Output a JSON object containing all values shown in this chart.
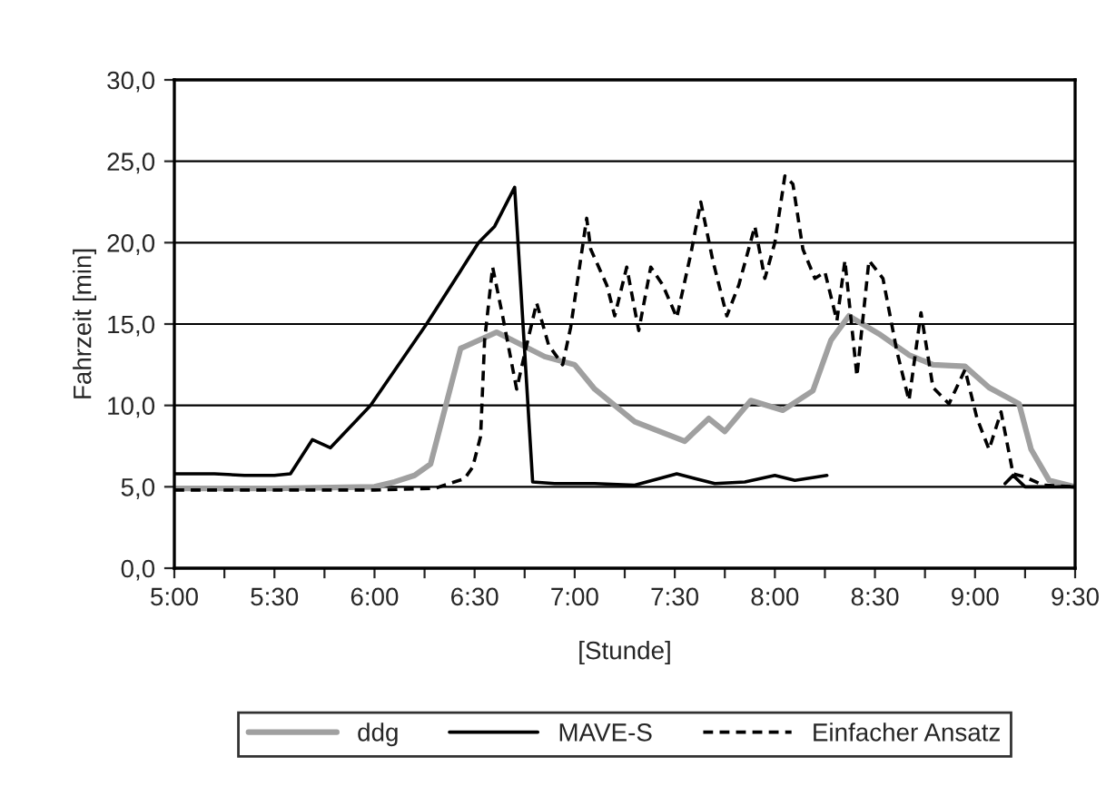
{
  "chart_data": {
    "type": "line",
    "xlabel": "[Stunde]",
    "ylabel": "Fahrzeit [min]",
    "xlim": [
      5,
      9.5
    ],
    "xticks": [
      {
        "value": 5,
        "label": "5:00"
      },
      {
        "value": 5.25,
        "label": null
      },
      {
        "value": 5.5,
        "label": "5:30"
      },
      {
        "value": 5.75,
        "label": null
      },
      {
        "value": 6,
        "label": "6:00"
      },
      {
        "value": 6.25,
        "label": null
      },
      {
        "value": 6.5,
        "label": "6:30"
      },
      {
        "value": 6.75,
        "label": null
      },
      {
        "value": 7,
        "label": "7:00"
      },
      {
        "value": 7.25,
        "label": null
      },
      {
        "value": 7.5,
        "label": "7:30"
      },
      {
        "value": 7.75,
        "label": null
      },
      {
        "value": 8,
        "label": "8:00"
      },
      {
        "value": 8.25,
        "label": null
      },
      {
        "value": 8.5,
        "label": "8:30"
      },
      {
        "value": 8.75,
        "label": null
      },
      {
        "value": 9,
        "label": "9:00"
      },
      {
        "value": 9.25,
        "label": null
      },
      {
        "value": 9.5,
        "label": "9:30"
      }
    ],
    "ylim": [
      0,
      30
    ],
    "yticks": [
      {
        "value": 0,
        "label": "0,0"
      },
      {
        "value": 5,
        "label": "5,0"
      },
      {
        "value": 10,
        "label": "10,0"
      },
      {
        "value": 15,
        "label": "15,0"
      },
      {
        "value": 20,
        "label": "20,0"
      },
      {
        "value": 25,
        "label": "25,0"
      },
      {
        "value": 30,
        "label": "30,0"
      }
    ],
    "grid": "y",
    "legend": "bottom",
    "series": [
      {
        "name": "ddg",
        "color": "#a0a0a0",
        "line_style": "solid",
        "x": [
          5.0,
          5.5,
          6.0,
          6.1,
          6.2,
          6.28,
          6.43,
          6.61,
          6.85,
          7.0,
          7.1,
          7.2,
          7.3,
          7.55,
          7.67,
          7.75,
          7.88,
          8.04,
          8.19,
          8.28,
          8.37,
          8.52,
          8.67,
          8.79,
          8.95,
          9.07,
          9.22,
          9.28,
          9.37,
          9.5
        ],
        "values": [
          4.9,
          4.9,
          5.0,
          5.3,
          5.7,
          6.4,
          13.5,
          14.5,
          13.0,
          12.5,
          11.0,
          10.0,
          9.0,
          7.8,
          9.2,
          8.4,
          10.3,
          9.7,
          10.9,
          14.0,
          15.5,
          14.4,
          13.1,
          12.5,
          12.4,
          11.1,
          10.1,
          7.3,
          5.4,
          5.0
        ]
      },
      {
        "name": "MAVE-S",
        "color": "#000000",
        "line_style": "solid",
        "x": [
          5.0,
          5.2,
          5.35,
          5.5,
          5.58,
          5.69,
          5.78,
          5.98,
          6.26,
          6.52,
          6.6,
          6.7,
          6.79,
          6.9,
          7.1,
          7.3,
          7.51,
          7.7,
          7.85,
          8.0,
          8.1,
          8.26,
          null,
          9.15,
          9.19,
          9.25,
          9.5
        ],
        "values": [
          5.8,
          5.8,
          5.7,
          5.7,
          5.8,
          7.9,
          7.4,
          10.0,
          15.0,
          20.0,
          21.0,
          23.4,
          5.3,
          5.2,
          5.2,
          5.1,
          5.8,
          5.2,
          5.3,
          5.7,
          5.4,
          5.7,
          null,
          5.2,
          5.7,
          5.0,
          5.0
        ]
      },
      {
        "name": "Einfacher Ansatz",
        "color": "#000000",
        "line_style": "dashed",
        "x": [
          5.0,
          5.5,
          6.0,
          6.3,
          6.45,
          6.49,
          6.53,
          6.55,
          6.59,
          6.64,
          6.71,
          6.76,
          6.81,
          6.87,
          6.94,
          6.98,
          7.06,
          7.08,
          7.16,
          7.2,
          7.26,
          7.32,
          7.38,
          7.44,
          7.51,
          7.58,
          7.63,
          7.69,
          7.76,
          7.82,
          7.9,
          7.95,
          8.0,
          8.05,
          8.09,
          8.14,
          8.2,
          8.25,
          8.31,
          8.35,
          8.41,
          8.47,
          8.54,
          8.61,
          8.67,
          8.73,
          8.79,
          8.87,
          8.95,
          9.01,
          9.07,
          9.13,
          9.19,
          9.25,
          9.34,
          9.5
        ],
        "values": [
          4.8,
          4.8,
          4.8,
          4.9,
          5.5,
          6.2,
          8.1,
          14.0,
          18.5,
          15.5,
          11.0,
          13.7,
          16.3,
          13.7,
          12.5,
          14.8,
          21.5,
          19.6,
          17.4,
          15.5,
          18.5,
          14.6,
          18.5,
          17.4,
          15.4,
          19.3,
          22.5,
          18.9,
          15.5,
          17.4,
          21.0,
          17.8,
          20.0,
          24.1,
          23.6,
          19.6,
          17.8,
          18.2,
          15.2,
          18.9,
          11.8,
          18.9,
          17.8,
          13.3,
          10.3,
          15.7,
          11.1,
          10.1,
          12.2,
          9.2,
          7.3,
          9.6,
          5.8,
          5.6,
          5.1,
          5.0
        ]
      }
    ]
  }
}
